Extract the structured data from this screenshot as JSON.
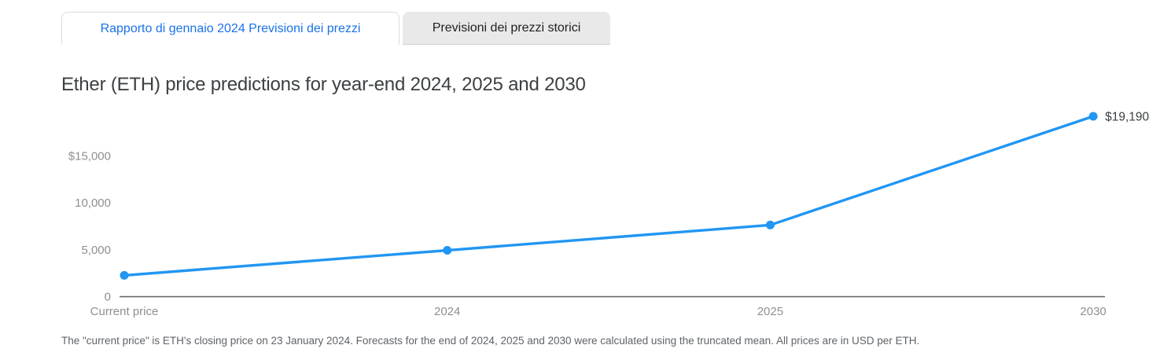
{
  "tabs": [
    {
      "label": "Rapporto di gennaio 2024 Previsioni dei prezzi",
      "active": true
    },
    {
      "label": "Previsioni dei prezzi storici",
      "active": false
    }
  ],
  "title": "Ether (ETH) price predictions for year-end 2024, 2025 and 2030",
  "footnote": "The \"current price\" is ETH's  closing price on 23 January 2024. Forecasts for the end of 2024, 2025 and 2030 were calculated using the truncated mean. All prices are in USD per ETH.",
  "chart_data": {
    "type": "line",
    "categories": [
      "Current price",
      "2024",
      "2025",
      "2030"
    ],
    "values": [
      2230,
      4900,
      7600,
      19190
    ],
    "y_ticks": [
      {
        "label": "$15,000",
        "value": 15000
      },
      {
        "label": "10,000",
        "value": 10000
      },
      {
        "label": "5,000",
        "value": 5000
      },
      {
        "label": "0",
        "value": 0
      }
    ],
    "point_label": {
      "index": 3,
      "text": "$19,190"
    },
    "title": "Ether (ETH) price predictions for year-end 2024, 2025 and 2030",
    "xlabel": "",
    "ylabel": "",
    "ylim": [
      0,
      15000
    ],
    "grid": false,
    "legend": "none",
    "line_color": "#2196f3"
  },
  "theme": {
    "active_tab_text": "#1a73e8",
    "inactive_tab_bg": "#e9e9e9",
    "tab_border": "#dadce0",
    "title_color": "#3c4043",
    "axis_line_color": "#616161",
    "tick_label_color": "#8f8f8f",
    "end_label_color": "#3c4043",
    "footnote_color": "#5f6368"
  }
}
